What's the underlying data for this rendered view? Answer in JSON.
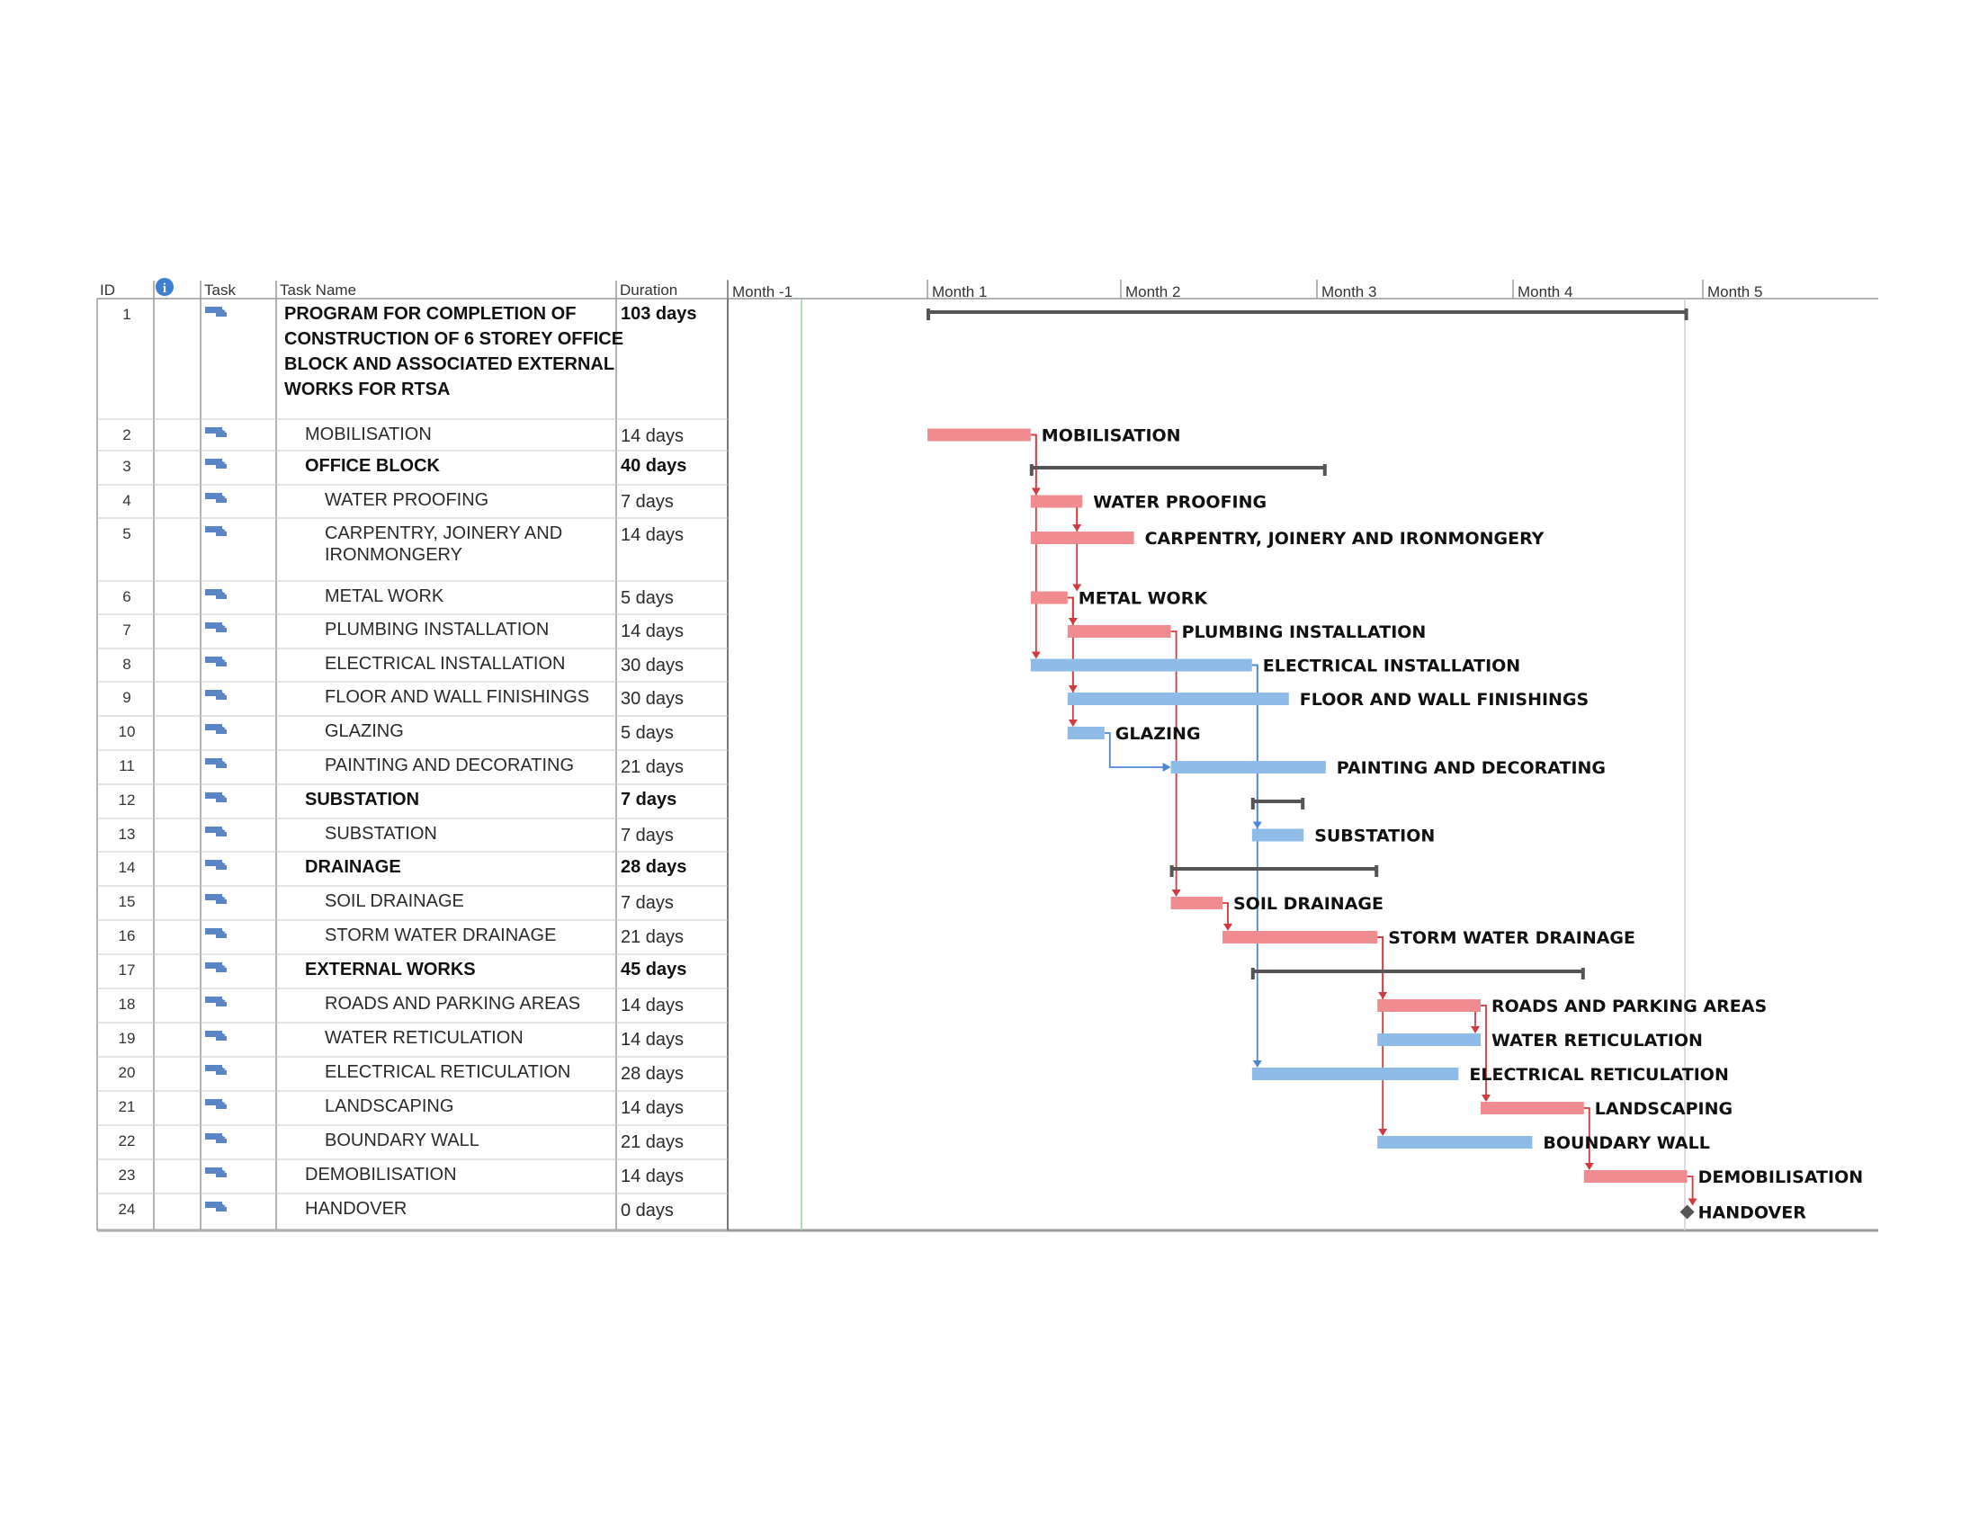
{
  "columns": {
    "id": "ID",
    "info": "i",
    "task_mode": "Task",
    "name": "Task Name",
    "duration": "Duration"
  },
  "timescale": [
    "Month -1",
    "Month 1",
    "Month 2",
    "Month 3",
    "Month 4",
    "Month 5"
  ],
  "colors": {
    "critical": "#f08b8f",
    "normal": "#8fbbe8",
    "summary": "#555555",
    "critical_link": "#d23a3f",
    "normal_link": "#4c86d6",
    "icon": "#5b86c6"
  },
  "chart_data": {
    "type": "gantt",
    "x_unit": "days",
    "tasks": [
      {
        "id": "1",
        "name": "PROGRAM FOR COMPLETION OF CONSTRUCTION OF 6 STOREY OFFICE BLOCK AND ASSOCIATED EXTERNAL WORKS FOR RTSA",
        "name_lines": [
          "PROGRAM FOR COMPLETION OF",
          "CONSTRUCTION OF 6 STOREY OFFICE",
          "BLOCK AND ASSOCIATED EXTERNAL",
          "WORKS FOR RTSA"
        ],
        "duration": "103 days",
        "start": 0,
        "finish": 103,
        "kind": "project",
        "bold": true,
        "indent": 0
      },
      {
        "id": "2",
        "name": "MOBILISATION",
        "duration": "14 days",
        "start": 0,
        "finish": 14,
        "kind": "critical",
        "bold": false,
        "indent": 1
      },
      {
        "id": "3",
        "name": "OFFICE BLOCK",
        "duration": "40 days",
        "start": 14,
        "finish": 54,
        "kind": "summary",
        "bold": true,
        "indent": 1
      },
      {
        "id": "4",
        "name": "WATER PROOFING",
        "duration": "7 days",
        "start": 14,
        "finish": 21,
        "kind": "critical",
        "bold": false,
        "indent": 2
      },
      {
        "id": "5",
        "name": "CARPENTRY, JOINERY AND IRONMONGERY",
        "name_lines": [
          "CARPENTRY, JOINERY AND",
          "IRONMONGERY"
        ],
        "duration": "14 days",
        "start": 14,
        "finish": 28,
        "kind": "critical",
        "bold": false,
        "indent": 2
      },
      {
        "id": "6",
        "name": "METAL WORK",
        "duration": "5 days",
        "start": 14,
        "finish": 19,
        "kind": "critical",
        "bold": false,
        "indent": 2
      },
      {
        "id": "7",
        "name": "PLUMBING INSTALLATION",
        "duration": "14 days",
        "start": 19,
        "finish": 33,
        "kind": "critical",
        "bold": false,
        "indent": 2
      },
      {
        "id": "8",
        "name": "ELECTRICAL INSTALLATION",
        "duration": "30 days",
        "start": 14,
        "finish": 44,
        "kind": "normal",
        "bold": false,
        "indent": 2
      },
      {
        "id": "9",
        "name": "FLOOR AND WALL FINISHINGS",
        "duration": "30 days",
        "start": 19,
        "finish": 49,
        "kind": "normal",
        "bold": false,
        "indent": 2
      },
      {
        "id": "10",
        "name": "GLAZING",
        "duration": "5 days",
        "start": 19,
        "finish": 24,
        "kind": "normal",
        "bold": false,
        "indent": 2
      },
      {
        "id": "11",
        "name": "PAINTING AND DECORATING",
        "duration": "21 days",
        "start": 33,
        "finish": 54,
        "kind": "normal",
        "bold": false,
        "indent": 2
      },
      {
        "id": "12",
        "name": "SUBSTATION",
        "duration": "7 days",
        "start": 44,
        "finish": 51,
        "kind": "summary",
        "bold": true,
        "indent": 1
      },
      {
        "id": "13",
        "name": "SUBSTATION",
        "duration": "7 days",
        "start": 44,
        "finish": 51,
        "kind": "normal",
        "bold": false,
        "indent": 2
      },
      {
        "id": "14",
        "name": "DRAINAGE",
        "duration": "28 days",
        "start": 33,
        "finish": 61,
        "kind": "summary",
        "bold": true,
        "indent": 1
      },
      {
        "id": "15",
        "name": "SOIL DRAINAGE",
        "duration": "7 days",
        "start": 33,
        "finish": 40,
        "kind": "critical",
        "bold": false,
        "indent": 2
      },
      {
        "id": "16",
        "name": "STORM WATER DRAINAGE",
        "duration": "21 days",
        "start": 40,
        "finish": 61,
        "kind": "critical",
        "bold": false,
        "indent": 2
      },
      {
        "id": "17",
        "name": "EXTERNAL WORKS",
        "duration": "45 days",
        "start": 44,
        "finish": 89,
        "kind": "summary",
        "bold": true,
        "indent": 1
      },
      {
        "id": "18",
        "name": "ROADS AND PARKING AREAS",
        "duration": "14 days",
        "start": 61,
        "finish": 75,
        "kind": "critical",
        "bold": false,
        "indent": 2
      },
      {
        "id": "19",
        "name": "WATER RETICULATION",
        "duration": "14 days",
        "start": 61,
        "finish": 75,
        "kind": "normal",
        "bold": false,
        "indent": 2
      },
      {
        "id": "20",
        "name": "ELECTRICAL RETICULATION",
        "duration": "28 days",
        "start": 44,
        "finish": 72,
        "kind": "normal",
        "bold": false,
        "indent": 2
      },
      {
        "id": "21",
        "name": "LANDSCAPING",
        "duration": "14 days",
        "start": 75,
        "finish": 89,
        "kind": "critical",
        "bold": false,
        "indent": 2
      },
      {
        "id": "22",
        "name": "BOUNDARY WALL",
        "duration": "21 days",
        "start": 61,
        "finish": 82,
        "kind": "normal",
        "bold": false,
        "indent": 2
      },
      {
        "id": "23",
        "name": "DEMOBILISATION",
        "duration": "14 days",
        "start": 89,
        "finish": 103,
        "kind": "critical",
        "bold": false,
        "indent": 1
      },
      {
        "id": "24",
        "name": "HANDOVER",
        "duration": "0 days",
        "start": 103,
        "finish": 103,
        "kind": "milestone",
        "bold": false,
        "indent": 1
      }
    ],
    "links": [
      {
        "from": "2",
        "to": "4",
        "critical": true
      },
      {
        "from": "2",
        "to": "8",
        "critical": true
      },
      {
        "from": "4",
        "to": "5",
        "critical": true
      },
      {
        "from": "4",
        "to": "6",
        "critical": true
      },
      {
        "from": "6",
        "to": "7",
        "critical": true
      },
      {
        "from": "6",
        "to": "9",
        "critical": true
      },
      {
        "from": "6",
        "to": "10",
        "critical": true
      },
      {
        "from": "7",
        "to": "15",
        "critical": true
      },
      {
        "from": "10",
        "to": "11",
        "critical": false
      },
      {
        "from": "8",
        "to": "13",
        "critical": false
      },
      {
        "from": "8",
        "to": "20",
        "critical": false
      },
      {
        "from": "15",
        "to": "16",
        "critical": true
      },
      {
        "from": "16",
        "to": "18",
        "critical": true
      },
      {
        "from": "18",
        "to": "19",
        "critical": true
      },
      {
        "from": "18",
        "to": "21",
        "critical": true
      },
      {
        "from": "16",
        "to": "22",
        "critical": true
      },
      {
        "from": "21",
        "to": "23",
        "critical": true
      },
      {
        "from": "23",
        "to": "24",
        "critical": true
      }
    ]
  }
}
